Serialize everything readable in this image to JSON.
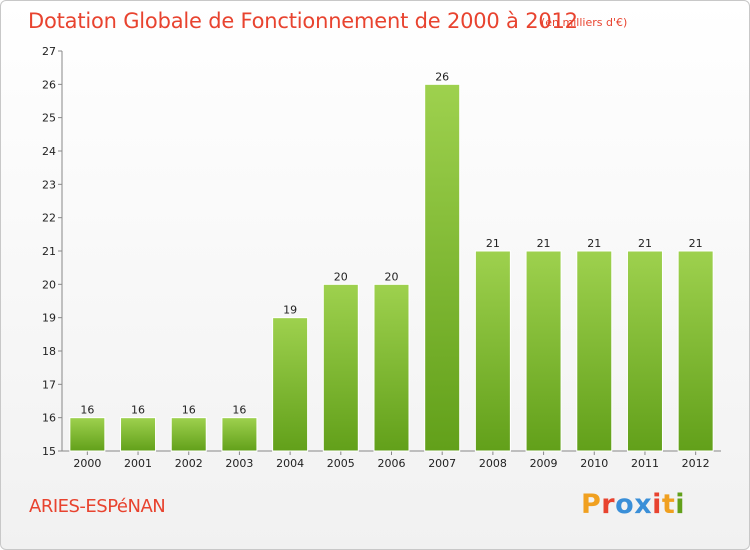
{
  "header": {
    "title": "Dotation Globale de Fonctionnement de 2000 à 2012",
    "subtitle": "(en milliers d'€)"
  },
  "footer": {
    "town": "ARIES-ESPéNAN",
    "logo_text": "Proxiti"
  },
  "colors": {
    "title": "#e8432f",
    "bar_top": "#9ed14e",
    "bar_bottom": "#62a01a",
    "logo_letters": [
      "#f0a020",
      "#e8432f",
      "#3a8fd8",
      "#3a8fd8",
      "#e8432f",
      "#f0a020",
      "#62a01a"
    ]
  },
  "chart_data": {
    "type": "bar",
    "categories": [
      "2000",
      "2001",
      "2002",
      "2003",
      "2004",
      "2005",
      "2006",
      "2007",
      "2008",
      "2009",
      "2010",
      "2011",
      "2012"
    ],
    "values": [
      16,
      16,
      16,
      16,
      19,
      20,
      20,
      26,
      21,
      21,
      21,
      21,
      21
    ],
    "ylim": [
      15,
      27
    ],
    "yticks": [
      15,
      16,
      17,
      18,
      19,
      20,
      21,
      22,
      23,
      24,
      25,
      26,
      27
    ],
    "grid": false,
    "data_labels": true
  }
}
